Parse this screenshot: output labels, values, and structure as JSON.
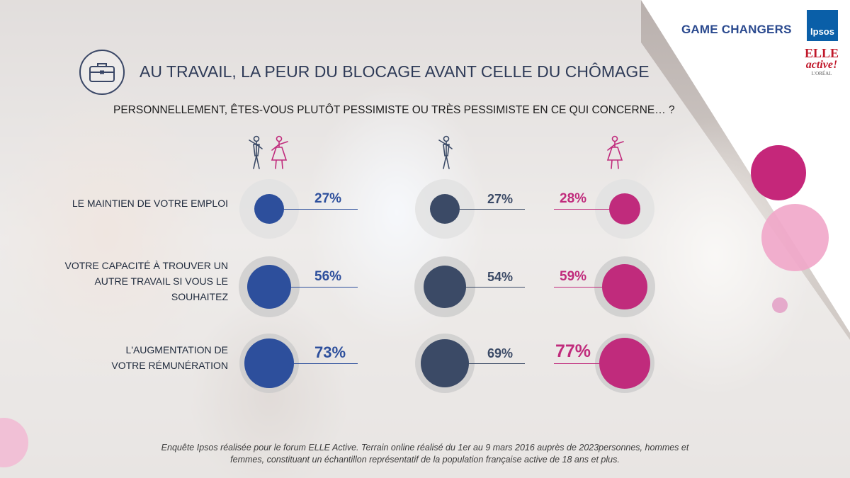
{
  "title": "AU TRAVAIL, LA PEUR DU BLOCAGE AVANT CELLE DU CHÔMAGE",
  "subtitle": "PERSONNELLEMENT, ÊTES-VOUS PLUTÔT PESSIMISTE OU TRÈS PESSIMISTE EN CE QUI CONCERNE… ?",
  "branding": {
    "game_changers": "GAME CHANGERS",
    "ipsos": "Ipsos",
    "elle_top": "ELLE",
    "elle_mid": "active!",
    "elle_bottom": "L'ORÉAL"
  },
  "footer": {
    "line1": "Enquête Ipsos réalisée pour le forum ELLE Active. Terrain online réalisé du 1er au 9 mars 2016 auprès de 2023personnes, hommes et",
    "line2": "femmes, constituant un échantillon représentatif de la population française active de 18 ans et plus."
  },
  "colors": {
    "total": "#2d4f9c",
    "men": "#3b4a66",
    "women": "#c02b7c"
  },
  "chart_data": {
    "type": "bubble",
    "title": "AU TRAVAIL, LA PEUR DU BLOCAGE AVANT CELLE DU CHÔMAGE",
    "unit": "%",
    "series": [
      {
        "name": "Total",
        "icon": "man-and-woman-icon",
        "values": [
          27,
          56,
          73
        ],
        "labels": [
          "27%",
          "56%",
          "73%"
        ]
      },
      {
        "name": "Hommes",
        "icon": "man-icon",
        "values": [
          27,
          54,
          69
        ],
        "labels": [
          "27%",
          "54%",
          "69%"
        ]
      },
      {
        "name": "Femmes",
        "icon": "woman-icon",
        "values": [
          28,
          59,
          77
        ],
        "labels": [
          "28%",
          "59%",
          "77%"
        ]
      }
    ],
    "categories": [
      {
        "key": "emploi",
        "lines": [
          "LE MAINTIEN DE VOTRE EMPLOI"
        ]
      },
      {
        "key": "capacite",
        "lines": [
          "VOTRE CAPACITÉ À TROUVER UN",
          "AUTRE TRAVAIL SI VOUS LE",
          "SOUHAITEZ"
        ]
      },
      {
        "key": "remuneration",
        "lines": [
          "L'AUGMENTATION DE",
          "VOTRE RÉMUNÉRATION"
        ]
      }
    ]
  }
}
